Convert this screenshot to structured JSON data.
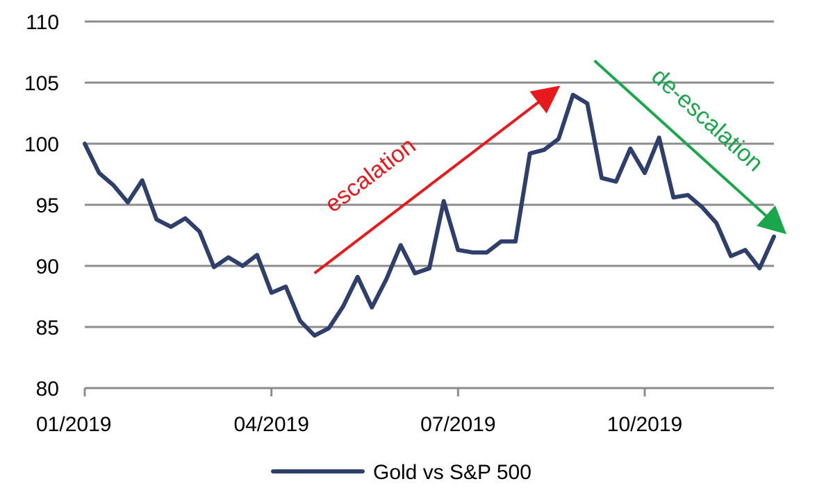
{
  "chart_data": {
    "type": "line",
    "title": "",
    "xlabel": "",
    "ylabel": "",
    "ylim": [
      80,
      110
    ],
    "yticks": [
      80,
      85,
      90,
      95,
      100,
      105,
      110
    ],
    "x_tick_labels": [
      "01/2019",
      "04/2019",
      "07/2019",
      "10/2019"
    ],
    "x_tick_positions": [
      0,
      13,
      26,
      39
    ],
    "grid": true,
    "legend_position": "bottom-center",
    "series": [
      {
        "name": "Gold vs S&P 500",
        "color": "#2e3f6b",
        "values": [
          100.0,
          97.6,
          96.6,
          95.2,
          97.0,
          93.8,
          93.2,
          93.9,
          92.8,
          89.9,
          90.7,
          90.0,
          90.9,
          87.8,
          88.3,
          85.5,
          84.3,
          84.9,
          86.7,
          89.1,
          86.6,
          88.9,
          91.7,
          89.4,
          89.8,
          95.3,
          91.3,
          91.1,
          91.1,
          92.0,
          92.0,
          99.2,
          99.5,
          100.4,
          104.0,
          103.3,
          97.2,
          96.9,
          99.6,
          97.6,
          100.5,
          95.6,
          95.8,
          94.8,
          93.5,
          90.8,
          91.3,
          89.8,
          92.4
        ]
      }
    ],
    "annotations": [
      {
        "text": "escalation",
        "color": "#e8191c",
        "from": [
          16,
          89.4
        ],
        "to": [
          32.5,
          104.2
        ]
      },
      {
        "text": "de-escalation",
        "color": "#1aa64a",
        "from": [
          35.5,
          106.8
        ],
        "to": [
          48.3,
          93.2
        ]
      }
    ]
  }
}
